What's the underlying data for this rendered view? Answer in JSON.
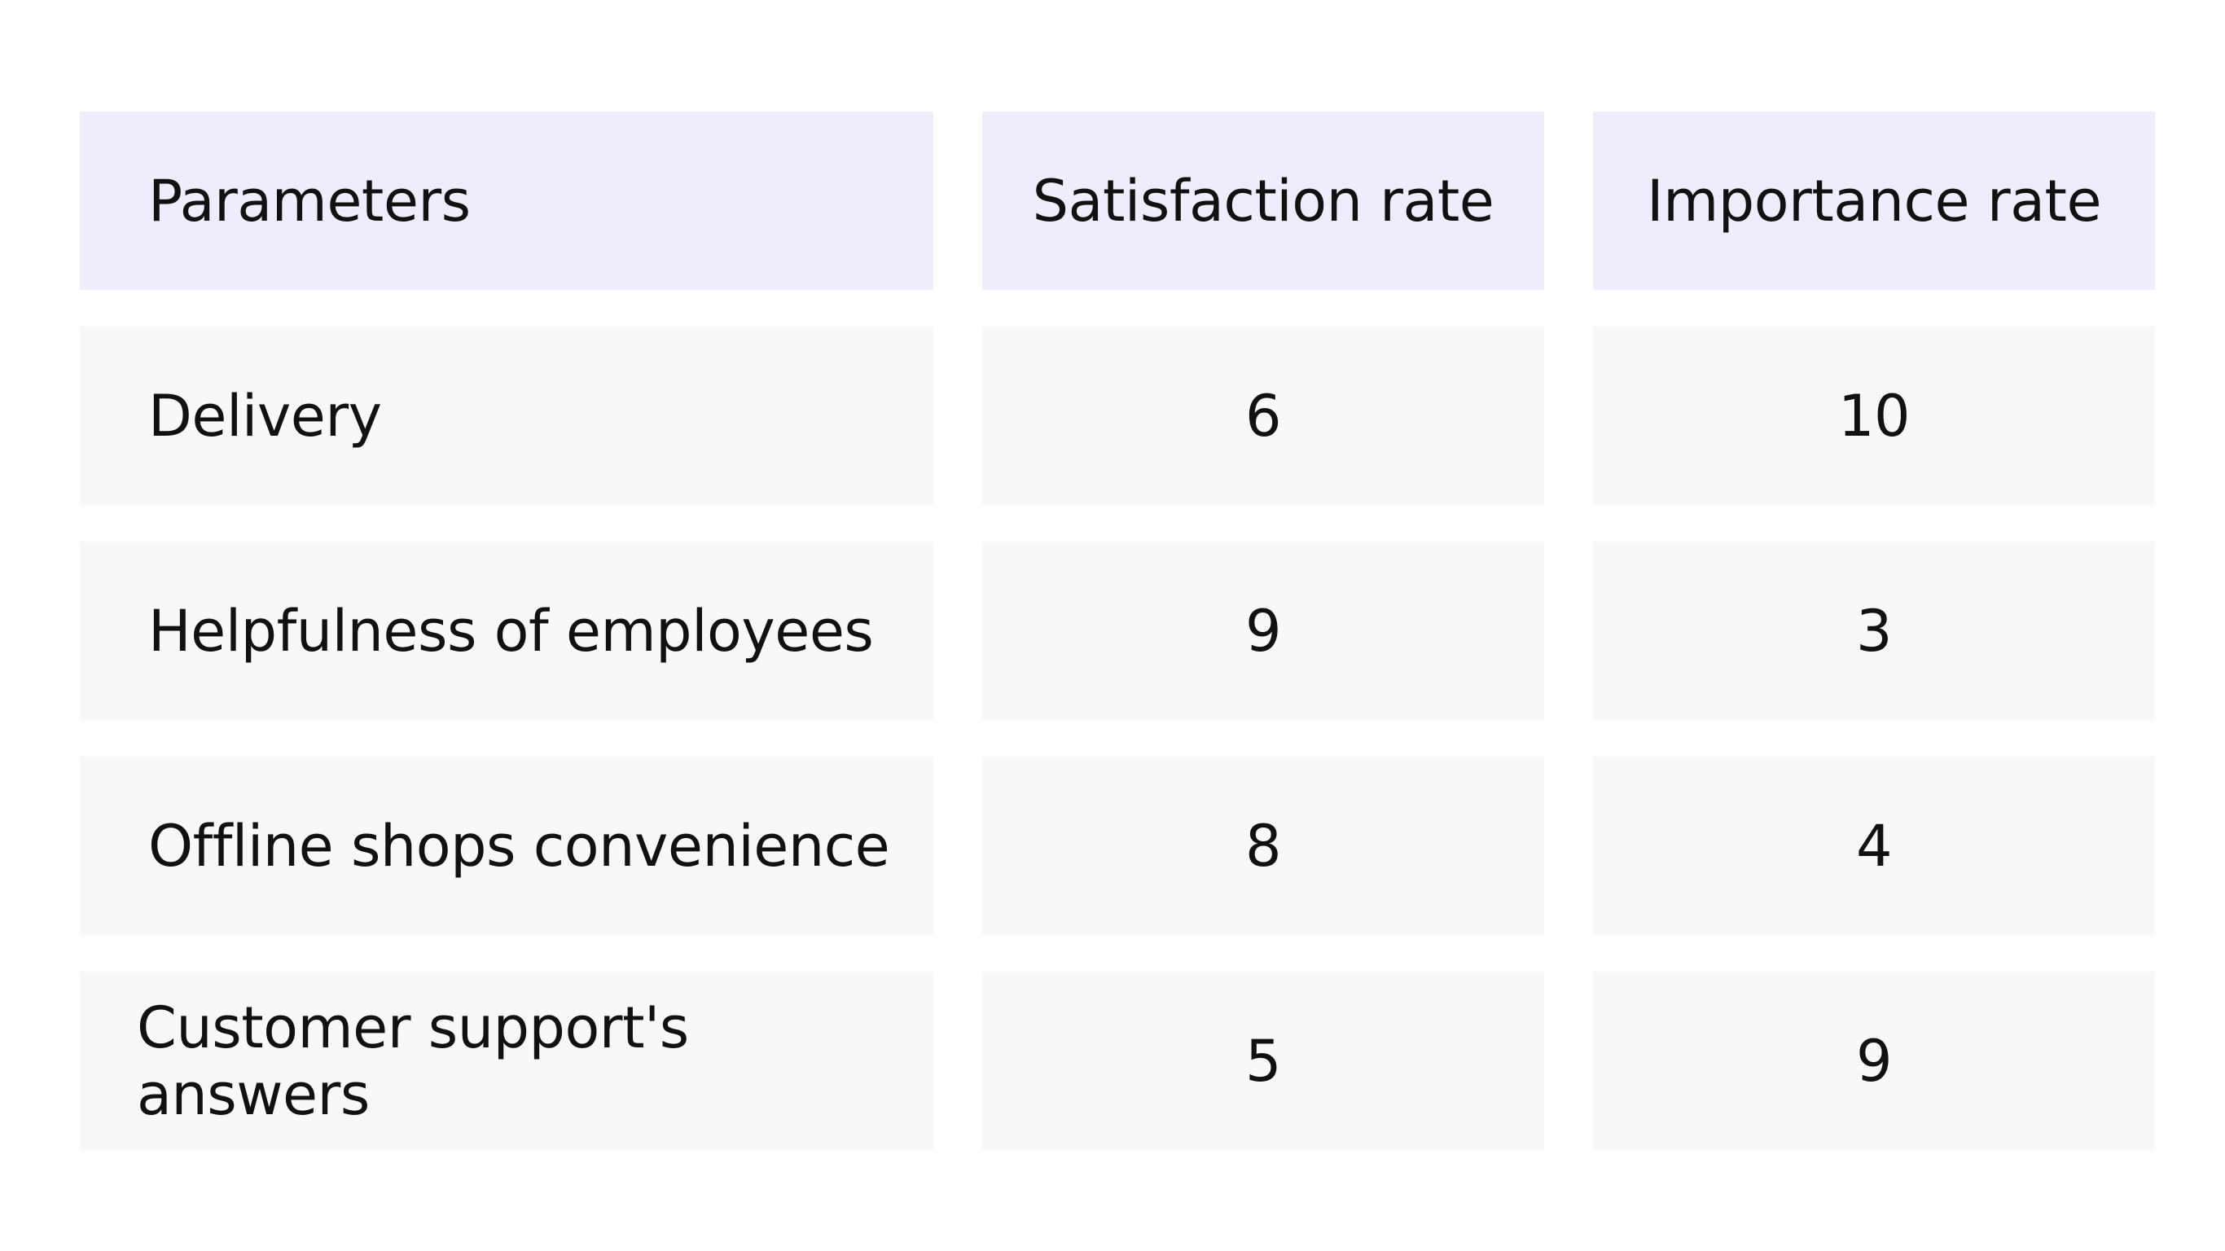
{
  "chart_data": {
    "type": "table",
    "columns": [
      "Parameters",
      "Satisfaction rate",
      "Importance rate"
    ],
    "rows": [
      [
        "Delivery",
        "6",
        "10"
      ],
      [
        "Helpfulness of employees",
        "9",
        "3"
      ],
      [
        "Offline shops convenience",
        "8",
        "4"
      ],
      [
        "Customer support's answers",
        "5",
        "9"
      ]
    ]
  },
  "colors": {
    "header_background": "#efedfb",
    "row_background": "#f8f8f8",
    "text": "#111111"
  }
}
